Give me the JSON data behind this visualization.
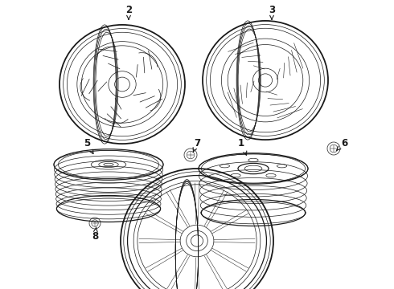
{
  "background_color": "#ffffff",
  "line_color": "#1a1a1a",
  "fig_width": 4.9,
  "fig_height": 3.6,
  "dpi": 100,
  "label_fontsize": 8.5
}
